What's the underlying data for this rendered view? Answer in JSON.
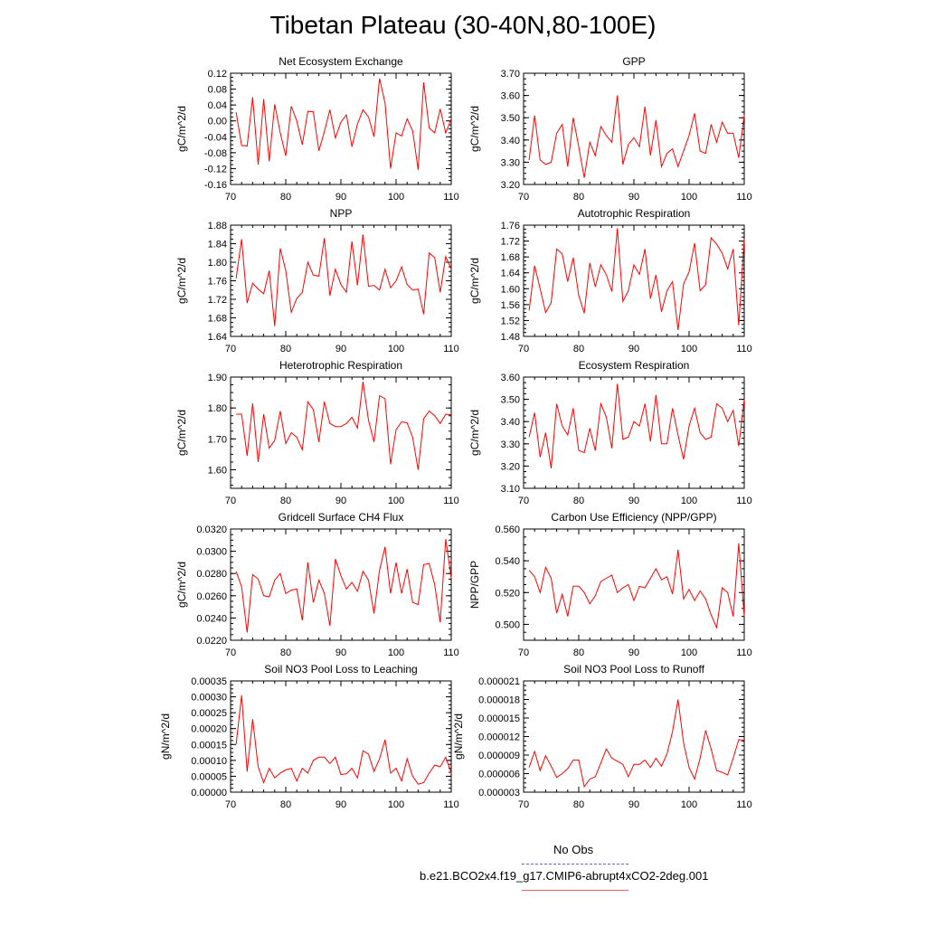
{
  "page": {
    "title": "Tibetan Plateau (30-40N,80-100E)"
  },
  "legend": {
    "entries": [
      {
        "label": "No Obs",
        "color": "#6666cc",
        "dashed": true
      },
      {
        "label": "b.e21.BCO2x4.f19_g17.CMIP6-abrupt4xCO2-2deg.001",
        "color": "#e06060",
        "dashed": false
      }
    ]
  },
  "series_color": "#ff0000",
  "chart_data": [
    {
      "type": "line",
      "title": "Net Ecosystem Exchange",
      "ylabel": "gC/m^2/d",
      "xlim": [
        70,
        110
      ],
      "ylim": [
        -0.16,
        0.12
      ],
      "yticks": [
        "-0.16",
        "-0.12",
        "-0.08",
        "-0.04",
        "0.00",
        "0.04",
        "0.08",
        "0.12"
      ],
      "xticks": [
        "70",
        "80",
        "90",
        "100",
        "110"
      ],
      "x_start": 71,
      "values": [
        0.022,
        -0.062,
        -0.063,
        0.06,
        -0.11,
        0.055,
        -0.102,
        0.042,
        -0.03,
        -0.088,
        0.037,
        0.0,
        -0.06,
        0.024,
        0.023,
        -0.075,
        -0.027,
        0.028,
        -0.043,
        -0.003,
        0.015,
        -0.065,
        -0.008,
        0.028,
        0.01,
        -0.04,
        0.107,
        0.045,
        -0.12,
        -0.03,
        -0.038,
        0.005,
        -0.025,
        -0.123,
        0.097,
        -0.018,
        -0.03,
        0.03,
        -0.03,
        0.005
      ]
    },
    {
      "type": "line",
      "title": "GPP",
      "ylabel": "gC/m^2/d",
      "xlim": [
        70,
        110
      ],
      "ylim": [
        3.2,
        3.7
      ],
      "yticks": [
        "3.20",
        "3.30",
        "3.40",
        "3.50",
        "3.60",
        "3.70"
      ],
      "xticks": [
        "70",
        "80",
        "90",
        "100",
        "110"
      ],
      "x_start": 71,
      "values": [
        3.31,
        3.51,
        3.31,
        3.29,
        3.3,
        3.43,
        3.47,
        3.28,
        3.5,
        3.37,
        3.23,
        3.39,
        3.33,
        3.46,
        3.42,
        3.39,
        3.6,
        3.29,
        3.38,
        3.41,
        3.37,
        3.55,
        3.33,
        3.49,
        3.28,
        3.34,
        3.36,
        3.28,
        3.35,
        3.42,
        3.52,
        3.35,
        3.34,
        3.47,
        3.39,
        3.48,
        3.43,
        3.43,
        3.32,
        3.51
      ]
    },
    {
      "type": "line",
      "title": "NPP",
      "ylabel": "gC/m^2/d",
      "xlim": [
        70,
        110
      ],
      "ylim": [
        1.64,
        1.88
      ],
      "yticks": [
        "1.64",
        "1.68",
        "1.72",
        "1.76",
        "1.80",
        "1.84",
        "1.88"
      ],
      "xticks": [
        "70",
        "80",
        "90",
        "100",
        "110"
      ],
      "x_start": 71,
      "values": [
        1.765,
        1.85,
        1.712,
        1.755,
        1.742,
        1.732,
        1.782,
        1.662,
        1.83,
        1.782,
        1.692,
        1.722,
        1.735,
        1.8,
        1.772,
        1.77,
        1.852,
        1.728,
        1.785,
        1.752,
        1.735,
        1.845,
        1.75,
        1.86,
        1.748,
        1.75,
        1.74,
        1.785,
        1.745,
        1.76,
        1.79,
        1.752,
        1.74,
        1.742,
        1.688,
        1.82,
        1.81,
        1.735,
        1.812,
        1.785
      ]
    },
    {
      "type": "line",
      "title": "Autotrophic Respiration",
      "ylabel": "gC/m^2/d",
      "xlim": [
        70,
        110
      ],
      "ylim": [
        1.48,
        1.76
      ],
      "yticks": [
        "1.48",
        "1.52",
        "1.56",
        "1.60",
        "1.64",
        "1.68",
        "1.72",
        "1.76"
      ],
      "xticks": [
        "70",
        "80",
        "90",
        "100",
        "110"
      ],
      "x_start": 71,
      "values": [
        1.545,
        1.658,
        1.6,
        1.54,
        1.565,
        1.7,
        1.688,
        1.618,
        1.678,
        1.583,
        1.538,
        1.665,
        1.605,
        1.66,
        1.635,
        1.593,
        1.752,
        1.568,
        1.595,
        1.66,
        1.636,
        1.7,
        1.575,
        1.635,
        1.542,
        1.595,
        1.618,
        1.496,
        1.612,
        1.642,
        1.715,
        1.595,
        1.61,
        1.728,
        1.712,
        1.69,
        1.65,
        1.7,
        1.508,
        1.725
      ]
    },
    {
      "type": "line",
      "title": "Heterotrophic Respiration",
      "ylabel": "gC/m^2/d",
      "xlim": [
        70,
        110
      ],
      "ylim": [
        1.54,
        1.9
      ],
      "yticks": [
        "1.60",
        "1.70",
        "1.80",
        "1.90"
      ],
      "xticks": [
        "70",
        "80",
        "90",
        "100",
        "110"
      ],
      "x_start": 71,
      "values": [
        1.78,
        1.78,
        1.645,
        1.815,
        1.625,
        1.78,
        1.67,
        1.695,
        1.79,
        1.685,
        1.72,
        1.705,
        1.665,
        1.82,
        1.795,
        1.69,
        1.82,
        1.75,
        1.74,
        1.74,
        1.75,
        1.77,
        1.735,
        1.885,
        1.76,
        1.69,
        1.84,
        1.83,
        1.618,
        1.73,
        1.755,
        1.752,
        1.705,
        1.6,
        1.765,
        1.79,
        1.775,
        1.75,
        1.78,
        1.778
      ]
    },
    {
      "type": "line",
      "title": "Ecosystem Respiration",
      "ylabel": "gC/m^2/d",
      "xlim": [
        70,
        110
      ],
      "ylim": [
        3.1,
        3.6
      ],
      "yticks": [
        "3.10",
        "3.20",
        "3.30",
        "3.40",
        "3.50",
        "3.60"
      ],
      "xticks": [
        "70",
        "80",
        "90",
        "100",
        "110"
      ],
      "x_start": 71,
      "values": [
        3.33,
        3.44,
        3.24,
        3.35,
        3.19,
        3.48,
        3.38,
        3.34,
        3.46,
        3.27,
        3.26,
        3.37,
        3.27,
        3.48,
        3.42,
        3.28,
        3.57,
        3.32,
        3.33,
        3.4,
        3.38,
        3.48,
        3.31,
        3.52,
        3.3,
        3.3,
        3.46,
        3.34,
        3.23,
        3.38,
        3.46,
        3.35,
        3.32,
        3.33,
        3.48,
        3.46,
        3.4,
        3.45,
        3.29,
        3.5
      ]
    },
    {
      "type": "line",
      "title": "Gridcell Surface CH4 Flux",
      "ylabel": "gC/m^2/d",
      "xlim": [
        70,
        110
      ],
      "ylim": [
        0.022,
        0.032
      ],
      "yticks": [
        "0.0220",
        "0.0240",
        "0.0260",
        "0.0280",
        "0.0300",
        "0.0320"
      ],
      "xticks": [
        "70",
        "80",
        "90",
        "100",
        "110"
      ],
      "x_start": 71,
      "values": [
        0.0282,
        0.0268,
        0.0227,
        0.0279,
        0.0275,
        0.026,
        0.0259,
        0.0274,
        0.028,
        0.0262,
        0.0265,
        0.0266,
        0.0238,
        0.029,
        0.0254,
        0.0274,
        0.0262,
        0.0233,
        0.0293,
        0.0278,
        0.0266,
        0.0272,
        0.0264,
        0.0282,
        0.0274,
        0.0244,
        0.0283,
        0.0304,
        0.0262,
        0.029,
        0.0262,
        0.0284,
        0.0254,
        0.0252,
        0.0288,
        0.0289,
        0.027,
        0.0236,
        0.0311,
        0.0276
      ]
    },
    {
      "type": "line",
      "title": "Carbon Use Efficiency (NPP/GPP)",
      "ylabel": "NPP/GPP",
      "xlim": [
        70,
        110
      ],
      "ylim": [
        0.49,
        0.56
      ],
      "yticks": [
        "0.500",
        "0.520",
        "0.540",
        "0.560"
      ],
      "xticks": [
        "70",
        "80",
        "90",
        "100",
        "110"
      ],
      "x_start": 71,
      "values": [
        0.534,
        0.53,
        0.52,
        0.536,
        0.529,
        0.507,
        0.519,
        0.505,
        0.524,
        0.524,
        0.52,
        0.513,
        0.518,
        0.527,
        0.529,
        0.531,
        0.52,
        0.523,
        0.525,
        0.515,
        0.524,
        0.523,
        0.529,
        0.535,
        0.528,
        0.53,
        0.519,
        0.547,
        0.516,
        0.522,
        0.515,
        0.521,
        0.516,
        0.506,
        0.498,
        0.523,
        0.52,
        0.505,
        0.551,
        0.505
      ]
    },
    {
      "type": "line",
      "title": "Soil NO3 Pool Loss to Leaching",
      "ylabel": "gN/m^2/d",
      "xlim": [
        70,
        110
      ],
      "ylim": [
        0.0,
        0.00035
      ],
      "yticks": [
        "0.00000",
        "0.00005",
        "0.00010",
        "0.00015",
        "0.00020",
        "0.00025",
        "0.00030",
        "0.00035"
      ],
      "xticks": [
        "70",
        "80",
        "90",
        "100",
        "110"
      ],
      "x_start": 71,
      "values": [
        0.00015,
        0.000305,
        6.5e-05,
        0.00023,
        8e-05,
        3e-05,
        7.5e-05,
        4.5e-05,
        6e-05,
        7e-05,
        7.5e-05,
        3.5e-05,
        7.5e-05,
        6e-05,
        0.0001,
        0.00011,
        0.00011,
        9e-05,
        0.00011,
        5.5e-05,
        5.8e-05,
        7.5e-05,
        4.5e-05,
        0.00013,
        0.00012,
        6.5e-05,
        0.000105,
        0.000165,
        6e-05,
        7.5e-05,
        3.5e-05,
        0.000105,
        5e-05,
        2.5e-05,
        3e-05,
        6e-05,
        8.5e-05,
        8e-05,
        0.00011,
        6e-05
      ]
    },
    {
      "type": "line",
      "title": "Soil NO3 Pool Loss to Runoff",
      "ylabel": "gN/m^2/d",
      "xlim": [
        70,
        110
      ],
      "ylim": [
        3e-06,
        2.1e-05
      ],
      "yticks": [
        "0.000003",
        "0.000006",
        "0.000009",
        "0.000012",
        "0.000015",
        "0.000018",
        "0.000021"
      ],
      "xticks": [
        "70",
        "80",
        "90",
        "100",
        "110"
      ],
      "x_start": 71,
      "values": [
        7e-06,
        9.6e-06,
        6.5e-06,
        8.9e-06,
        7.2e-06,
        5.4e-06,
        6e-06,
        6.8e-06,
        8.2e-06,
        8.2e-06,
        3.9e-06,
        5.1e-06,
        5.5e-06,
        7.7e-06,
        1e-05,
        8.5e-06,
        8e-06,
        7.5e-06,
        5.5e-06,
        7.5e-06,
        7.5e-06,
        8.2e-06,
        7e-06,
        8.5e-06,
        7.2e-06,
        9.2e-06,
        1.28e-05,
        1.8e-05,
        1.1e-05,
        7e-06,
        5.1e-06,
        8.5e-06,
        1.3e-05,
        1e-05,
        6.5e-06,
        6.2e-06,
        5.8e-06,
        8.5e-06,
        1.15e-05,
        1.14e-05
      ]
    }
  ]
}
